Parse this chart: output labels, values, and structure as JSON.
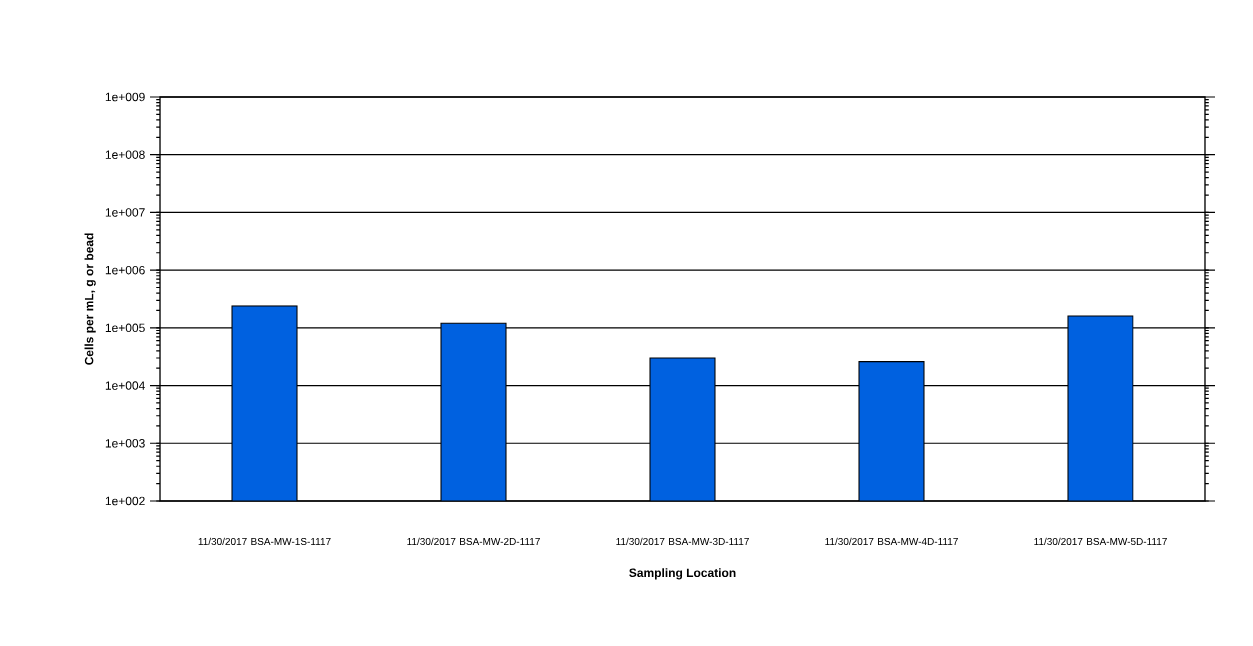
{
  "chart_data": {
    "type": "bar",
    "xlabel": "Sampling Location",
    "ylabel": "Cells per mL, g or bead",
    "categories": [
      "11/30/2017 BSA-MW-1S-1117",
      "11/30/2017 BSA-MW-2D-1117",
      "11/30/2017 BSA-MW-3D-1117",
      "11/30/2017 BSA-MW-4D-1117",
      "11/30/2017 BSA-MW-5D-1117"
    ],
    "values": [
      240000,
      120000,
      30000,
      26000,
      160000
    ],
    "color": "#0061e0",
    "log": "y",
    "grid": "y",
    "ylim": [
      100,
      1000000000
    ],
    "yticks": [
      {
        "value": 100,
        "label": "1e+002"
      },
      {
        "value": 1000,
        "label": "1e+003"
      },
      {
        "value": 10000,
        "label": "1e+004"
      },
      {
        "value": 100000,
        "label": "1e+005"
      },
      {
        "value": 1000000,
        "label": "1e+006"
      },
      {
        "value": 10000000,
        "label": "1e+007"
      },
      {
        "value": 100000000,
        "label": "1e+008"
      },
      {
        "value": 1000000000,
        "label": "1e+009"
      }
    ]
  }
}
